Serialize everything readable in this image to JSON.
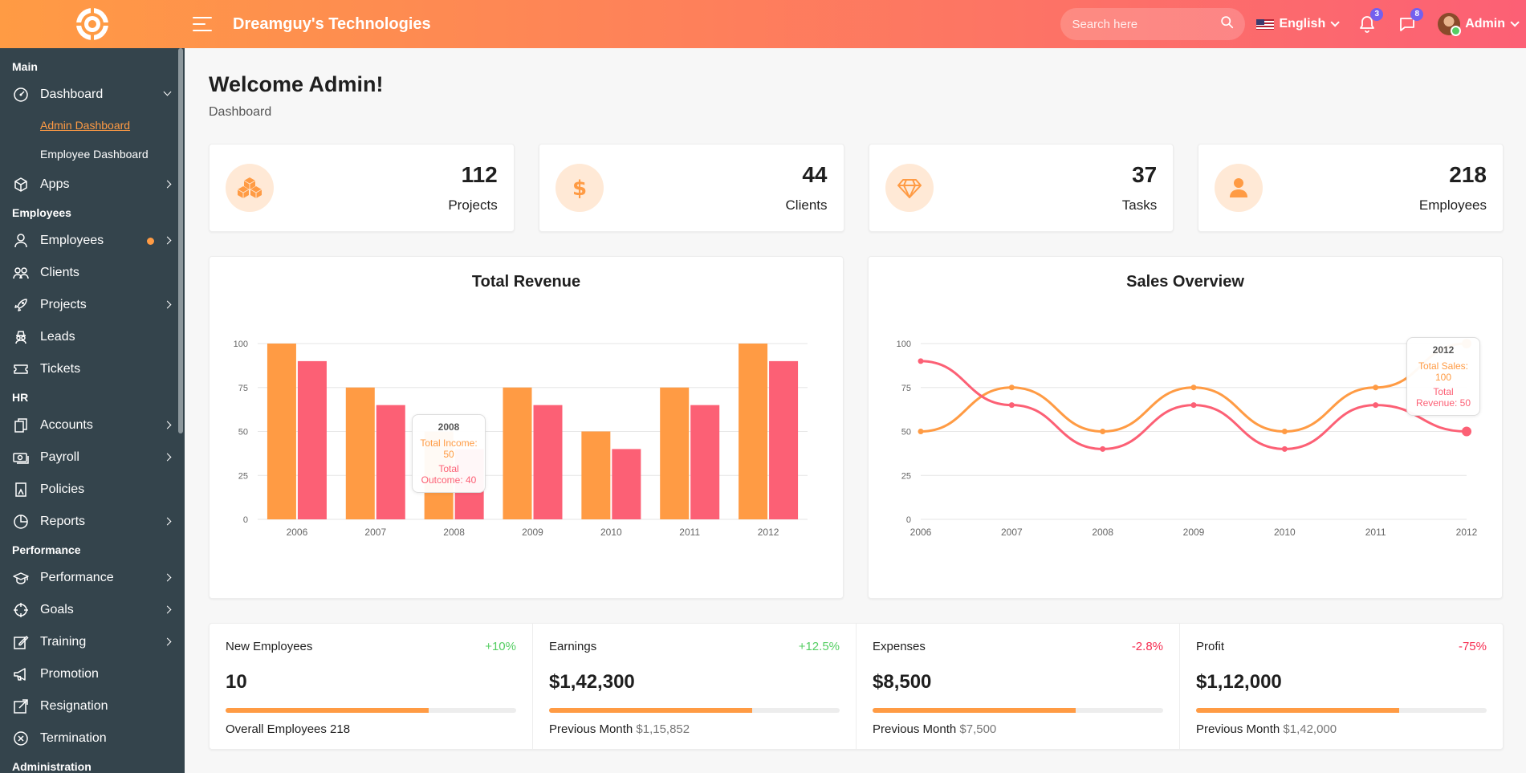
{
  "header": {
    "company": "Dreamguy's Technologies",
    "search_placeholder": "Search here",
    "language": "English",
    "notifications_count": "3",
    "messages_count": "8",
    "user_name": "Admin"
  },
  "sidebar": {
    "sections": [
      {
        "title": "Main"
      },
      {
        "title": "Employees"
      },
      {
        "title": "HR"
      },
      {
        "title": "Performance"
      },
      {
        "title": "Administration"
      }
    ],
    "dashboard": {
      "label": "Dashboard",
      "sub": [
        "Admin Dashboard",
        "Employee Dashboard"
      ]
    },
    "items": {
      "apps": "Apps",
      "employees": "Employees",
      "clients": "Clients",
      "projects": "Projects",
      "leads": "Leads",
      "tickets": "Tickets",
      "accounts": "Accounts",
      "payroll": "Payroll",
      "policies": "Policies",
      "reports": "Reports",
      "performance": "Performance",
      "goals": "Goals",
      "training": "Training",
      "promotion": "Promotion",
      "resignation": "Resignation",
      "termination": "Termination"
    }
  },
  "page": {
    "title": "Welcome Admin!",
    "breadcrumb": "Dashboard"
  },
  "stats": [
    {
      "value": "112",
      "label": "Projects",
      "icon": "cubes-icon"
    },
    {
      "value": "44",
      "label": "Clients",
      "icon": "dollar-icon"
    },
    {
      "value": "37",
      "label": "Tasks",
      "icon": "diamond-icon"
    },
    {
      "value": "218",
      "label": "Employees",
      "icon": "user-icon"
    }
  ],
  "colors": {
    "accent": "#ff9b44",
    "secondary": "#fc6075",
    "positive": "#55ce63",
    "negative": "#f62d51"
  },
  "chart_data": [
    {
      "type": "bar",
      "title": "Total Revenue",
      "categories": [
        "2006",
        "2007",
        "2008",
        "2009",
        "2010",
        "2011",
        "2012"
      ],
      "series": [
        {
          "name": "Total Income",
          "values": [
            100,
            75,
            50,
            75,
            50,
            75,
            100
          ]
        },
        {
          "name": "Total Outcome",
          "values": [
            90,
            65,
            40,
            65,
            40,
            65,
            90
          ]
        }
      ],
      "ylim": [
        0,
        100
      ],
      "yticks": [
        0,
        25,
        50,
        75,
        100
      ],
      "grid": true,
      "tooltip": {
        "title": "2008",
        "lines": [
          "Total Income: 50",
          "Total Outcome: 40"
        ]
      }
    },
    {
      "type": "line",
      "title": "Sales Overview",
      "categories": [
        "2006",
        "2007",
        "2008",
        "2009",
        "2010",
        "2011",
        "2012"
      ],
      "series": [
        {
          "name": "Total Sales",
          "values": [
            50,
            75,
            50,
            75,
            50,
            75,
            100
          ]
        },
        {
          "name": "Total Revenue",
          "values": [
            90,
            65,
            40,
            65,
            40,
            65,
            50
          ]
        }
      ],
      "ylim": [
        0,
        100
      ],
      "yticks": [
        0,
        25,
        50,
        75,
        100
      ],
      "grid": true,
      "tooltip": {
        "title": "2012",
        "lines": [
          "Total Sales: 100",
          "Total Revenue: 50"
        ]
      }
    }
  ],
  "summary": [
    {
      "label": "New Employees",
      "change": "+10%",
      "trend": "pos",
      "value": "10",
      "progress": 0.7,
      "foot_label": "Overall Employees 218",
      "foot_value": ""
    },
    {
      "label": "Earnings",
      "change": "+12.5%",
      "trend": "pos",
      "value": "$1,42,300",
      "progress": 0.7,
      "foot_label": "Previous Month",
      "foot_value": "$1,15,852"
    },
    {
      "label": "Expenses",
      "change": "-2.8%",
      "trend": "neg",
      "value": "$8,500",
      "progress": 0.7,
      "foot_label": "Previous Month",
      "foot_value": "$7,500"
    },
    {
      "label": "Profit",
      "change": "-75%",
      "trend": "neg",
      "value": "$1,12,000",
      "progress": 0.7,
      "foot_label": "Previous Month",
      "foot_value": "$1,42,000"
    }
  ]
}
